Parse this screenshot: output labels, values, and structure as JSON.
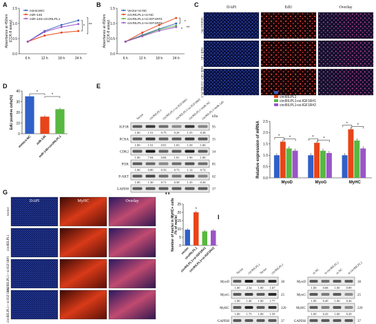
{
  "panels": [
    "A",
    "B",
    "C",
    "D",
    "E",
    "F",
    "G",
    "H",
    "I"
  ],
  "panelA": {
    "ylabel": "Absorbance at 450nm",
    "ylabel2": "(CCK-8 assay)",
    "xticks": [
      "6 h",
      "12 h",
      "18 h",
      "24 h"
    ],
    "yticks": [
      "0.0",
      "0.5",
      "1.0",
      "1.5"
    ],
    "legend": [
      "mimicsNC",
      "miR-145",
      "miR-145+circRILPL1"
    ],
    "sig": [
      "*",
      "**"
    ],
    "colors": [
      "#3c62c8",
      "#e8451a",
      "#9a55c8"
    ]
  },
  "panelB": {
    "ylabel": "Absorbance at 450nm",
    "ylabel2": "(CCK-8 assay)",
    "xticks": [
      "6 h",
      "12 h",
      "18 h",
      "24 h"
    ],
    "yticks": [
      "0.0",
      "0.5",
      "1.0",
      "1.5"
    ],
    "legend": [
      "Vector+si-NC",
      "circRILPL1+si-NC",
      "circRILPL1+si-IGF1R#1",
      "circRILPL1+si-IGF1R#2"
    ],
    "sig": [
      "*",
      "**"
    ],
    "colors": [
      "#3c62c8",
      "#e8451a",
      "#58b840",
      "#9a55c8"
    ]
  },
  "panelC": {
    "cols": [
      "DAPI",
      "EdU",
      "Overlay"
    ],
    "rows": [
      "mimics-NC",
      "miR-145",
      "miR-145+ circRILPL1"
    ]
  },
  "panelD": {
    "ylabel": "EdU positive cells(%)",
    "yticks": [
      "0",
      "10",
      "20",
      "30",
      "40"
    ],
    "sig": [
      "*",
      "*"
    ]
  },
  "panelE": {
    "cols": [
      "Vector",
      "circRILPL1",
      "circRILPL1+si-IGF1R#1",
      "circRILPL1+si-IGF1R#2",
      "circRILPL1+miR-NC",
      "circRILPL1+miR-145"
    ],
    "unit": "kDa",
    "rows": [
      {
        "name": "IGF1R",
        "kda": "95",
        "vals": [
          "1.00",
          "1.51",
          "0.75",
          "0.29",
          "1.55",
          "0.38"
        ]
      },
      {
        "name": "PCNA",
        "kda": "35",
        "vals": [
          "1.00",
          "1.51",
          "0.91",
          "1.03",
          "1.50",
          "1.06"
        ]
      },
      {
        "name": "CDK2",
        "kda": "34",
        "vals": [
          "1.00",
          "7.04",
          "0.84",
          "1.01",
          "1.90",
          "1.00"
        ]
      },
      {
        "name": "PI3K",
        "kda": "85",
        "vals": [
          "1.00",
          "0.80",
          "0.33",
          "0.73",
          "1.12",
          "0.72"
        ]
      },
      {
        "name": "P-AKT",
        "kda": "62",
        "vals": [
          "1.00",
          "1.30",
          "0.71",
          "0.58",
          "1.35",
          "0.36"
        ]
      },
      {
        "name": "GAPDH",
        "kda": "37",
        "vals": []
      }
    ]
  },
  "panelF": {
    "ylabel": "Relative expression of mRNA",
    "yticks": [
      "0.0",
      "0.5",
      "1.0",
      "1.5",
      "2.0",
      "2.5"
    ],
    "groups": [
      "MyoD",
      "MyoG",
      "MyHC"
    ],
    "legend": [
      "Vector",
      "circRILPL1",
      "circRILPL1+si-IGF1R#1",
      "circRILPL1+si-IGF1R#2"
    ],
    "sig": [
      "*",
      "*",
      "*",
      "*",
      "*",
      "*"
    ]
  },
  "panelG": {
    "cols": [
      "DAPI",
      "MyHC",
      "Overlay"
    ],
    "rows": [
      "vector",
      "circRILPL1",
      "circRILPL1+ si-IGF1R#1",
      "circRILPL1+ si-IGF1R#2"
    ]
  },
  "panelH": {
    "ylabel": "Number of nuclei in MyHC+ cells",
    "ylabel2": "/% of nuclei",
    "yticks": [
      "0",
      "5",
      "10",
      "15",
      "20",
      "25"
    ],
    "sig": "*"
  },
  "panelI": {
    "left": {
      "cols": [
        "Vector",
        "circRILPL1",
        "Vector",
        "circRILPL1"
      ],
      "rows": [
        {
          "name": "MyoD",
          "kda": "38",
          "vals": [
            "1.00",
            "2.34",
            "1.00",
            "1.67"
          ]
        },
        {
          "name": "MyoG",
          "kda": "25",
          "vals": [
            "1.00",
            "1.40",
            "1.00",
            "1.77"
          ]
        },
        {
          "name": "MyHC",
          "kda": "220",
          "vals": [
            "1.00",
            "1.75",
            "1.00",
            "1.59"
          ]
        },
        {
          "name": "GAPDH",
          "kda": "37",
          "vals": []
        }
      ]
    },
    "right": {
      "cols": [
        "si-NC",
        "si-circRILPL1",
        "si-NC",
        "si-circRILPL1"
      ],
      "rows": [
        {
          "name": "MyoD",
          "kda": "38",
          "vals": [
            "1.00",
            "0.68",
            "1.00",
            "0.89"
          ]
        },
        {
          "name": "MyoG",
          "kda": "25",
          "vals": [
            "1.00",
            "0.49",
            "1.00",
            "0.26"
          ]
        },
        {
          "name": "MyHC",
          "kda": "220",
          "vals": [
            "1.00",
            "0.43",
            "1.00",
            "0.29"
          ]
        },
        {
          "name": "GAPDH",
          "kda": "37",
          "vals": []
        }
      ]
    }
  },
  "chart_data": [
    {
      "type": "line",
      "panel": "A",
      "x": [
        "6 h",
        "12 h",
        "18 h",
        "24 h"
      ],
      "ylim": [
        0,
        1.5
      ],
      "series": [
        {
          "name": "mimicsNC",
          "values": [
            0.4,
            0.75,
            0.95,
            1.1
          ]
        },
        {
          "name": "miR-145",
          "values": [
            0.4,
            0.6,
            0.7,
            0.75
          ]
        },
        {
          "name": "miR-145+circRILPL1",
          "values": [
            0.4,
            0.72,
            0.88,
            0.98
          ]
        }
      ]
    },
    {
      "type": "line",
      "panel": "B",
      "x": [
        "6 h",
        "12 h",
        "18 h",
        "24 h"
      ],
      "ylim": [
        0,
        1.5
      ],
      "series": [
        {
          "name": "Vector+si-NC",
          "values": [
            0.4,
            0.62,
            0.82,
            1.0
          ]
        },
        {
          "name": "circRILPL1+si-NC",
          "values": [
            0.4,
            0.7,
            0.95,
            1.18
          ]
        },
        {
          "name": "circRILPL1+si-IGF1R#1",
          "values": [
            0.4,
            0.6,
            0.8,
            0.93
          ]
        },
        {
          "name": "circRILPL1+si-IGF1R#2",
          "values": [
            0.4,
            0.58,
            0.76,
            0.88
          ]
        }
      ]
    },
    {
      "type": "bar",
      "panel": "D",
      "categories": [
        "mimics-NC",
        "miR-145",
        "miR-145+circRILPL1"
      ],
      "values": [
        35,
        16,
        23
      ],
      "ylim": [
        0,
        40
      ],
      "colors": [
        "#3060c8",
        "#e8451a",
        "#58b840"
      ]
    },
    {
      "type": "bar",
      "panel": "F",
      "categories": [
        "MyoD",
        "MyoG",
        "MyHC"
      ],
      "ylim": [
        0,
        2.5
      ],
      "series": [
        {
          "name": "Vector",
          "values": [
            1.0,
            1.0,
            1.0
          ]
        },
        {
          "name": "circRILPL1",
          "values": [
            1.6,
            1.55,
            2.15
          ]
        },
        {
          "name": "circRILPL1+si-IGF1R#1",
          "values": [
            1.3,
            1.2,
            1.65
          ]
        },
        {
          "name": "circRILPL1+si-IGF1R#2",
          "values": [
            1.2,
            1.1,
            1.3
          ]
        }
      ]
    },
    {
      "type": "bar",
      "panel": "H",
      "categories": [
        "vector",
        "circRILPL1",
        "circRILPL1+si-IGF1R#1",
        "circRILPL1+si-IGF1R#2"
      ],
      "values": [
        9.5,
        20,
        8.5,
        9
      ],
      "ylim": [
        0,
        25
      ],
      "colors": [
        "#3060c8",
        "#e8451a",
        "#58b840",
        "#9a55c8"
      ]
    }
  ]
}
